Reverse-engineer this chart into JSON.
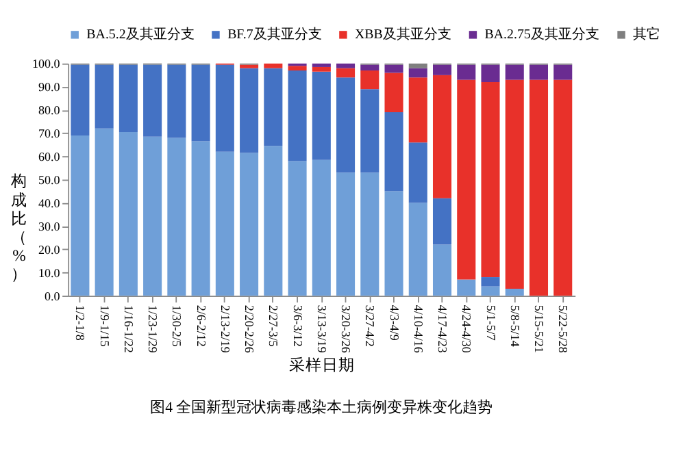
{
  "chart_data": {
    "type": "bar",
    "stacked": true,
    "xlabel": "采样日期",
    "ylabel": "构成比（%）",
    "annotations": [
      "图4 全国新型冠状病毒感染本土病例变异株变化趋势"
    ],
    "categories": [
      "1/2-1/8",
      "1/9-1/15",
      "1/16-1/22",
      "1/23-1/29",
      "1/30-2/5",
      "2/6-2/12",
      "2/13-2/19",
      "2/20-2/26",
      "2/27-3/5",
      "3/6-3/12",
      "3/13-3/19",
      "3/20-3/26",
      "3/27-4/2",
      "4/3-4/9",
      "4/10-4/16",
      "4/17-4/23",
      "4/24-4/30",
      "5/1-5/7",
      "5/8-5/14",
      "5/15-5/21",
      "5/22-5/28"
    ],
    "series": [
      {
        "name": "BA.5.2及其亚分支",
        "color": "#6f9fd8",
        "values": [
          69,
          72,
          70.5,
          68.5,
          68,
          66.5,
          62,
          61.5,
          64.5,
          58,
          58.5,
          53,
          53,
          45,
          40,
          22,
          7,
          4,
          3,
          0,
          0
        ]
      },
      {
        "name": "BF.7及其亚分支",
        "color": "#4472c4",
        "values": [
          30.5,
          27.5,
          29,
          31,
          31.5,
          33,
          37.5,
          36.5,
          33.5,
          39,
          38,
          41,
          36,
          34,
          26,
          20,
          0,
          4,
          0,
          0,
          0
        ]
      },
      {
        "name": "XBB及其亚分支",
        "color": "#e8312a",
        "values": [
          0,
          0,
          0,
          0,
          0,
          0,
          0.5,
          1.5,
          2,
          2,
          2,
          4,
          8,
          17,
          28,
          53,
          86,
          84,
          90,
          93,
          93
        ]
      },
      {
        "name": "BA.2.75及其亚分支",
        "color": "#6a2c91",
        "values": [
          0,
          0,
          0,
          0,
          0,
          0,
          0,
          0,
          0,
          1,
          1.5,
          2,
          2.5,
          3.5,
          4,
          4.5,
          6.5,
          7.5,
          6.5,
          6.5,
          6.5
        ]
      },
      {
        "name": "其它",
        "color": "#7f7f7f",
        "values": [
          0.5,
          0.5,
          0.5,
          0.5,
          0.5,
          0.5,
          0,
          0.5,
          0,
          0,
          0,
          0,
          0.5,
          0.5,
          2,
          0.5,
          0.5,
          0.5,
          0.5,
          0.5,
          0.5
        ]
      }
    ],
    "ylim": [
      0,
      100
    ],
    "yticks": [
      {
        "value": 0,
        "label": "0.0"
      },
      {
        "value": 10,
        "label": "10.0"
      },
      {
        "value": 20,
        "label": "20.0"
      },
      {
        "value": 30,
        "label": "30.0"
      },
      {
        "value": 40,
        "label": "40.0"
      },
      {
        "value": 50,
        "label": "50.0"
      },
      {
        "value": 60,
        "label": "60.0"
      },
      {
        "value": 70,
        "label": "70.0"
      },
      {
        "value": 80,
        "label": "80.0"
      },
      {
        "value": 90,
        "label": "90.0"
      },
      {
        "value": 100,
        "label": "100.0"
      }
    ],
    "grid": false,
    "legend": "top"
  }
}
